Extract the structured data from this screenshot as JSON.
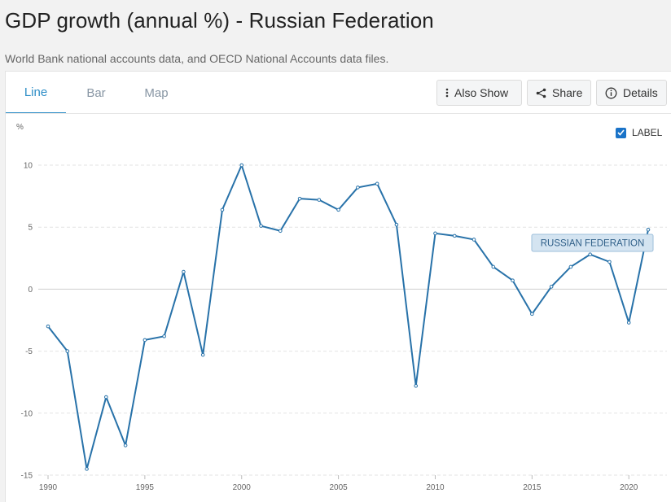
{
  "header": {
    "title": "GDP growth (annual %) - Russian Federation",
    "subtitle": "World Bank national accounts data, and OECD National Accounts data files."
  },
  "tabs": [
    {
      "label": "Line",
      "active": true
    },
    {
      "label": "Bar",
      "active": false
    },
    {
      "label": "Map",
      "active": false
    }
  ],
  "toolbar": {
    "also_show_label": "Also Show",
    "share_label": "Share",
    "details_label": "Details"
  },
  "label_toggle": {
    "label": "LABEL",
    "checked": true
  },
  "colors": {
    "accent": "#2e8ec7",
    "series": "#2872a9",
    "label_box": "#d4e4f1"
  },
  "chart_data": {
    "type": "line",
    "ylabel": "%",
    "xlabel": "",
    "ylim": [
      -15,
      10
    ],
    "xlim": [
      1990,
      2021
    ],
    "yticks": [
      10,
      5,
      0,
      -5,
      -10,
      -15
    ],
    "xticks": [
      1990,
      1995,
      2000,
      2005,
      2010,
      2015,
      2020
    ],
    "grid": true,
    "series": [
      {
        "name": "RUSSIAN FEDERATION",
        "x": [
          1990,
          1991,
          1992,
          1993,
          1994,
          1995,
          1996,
          1997,
          1998,
          1999,
          2000,
          2001,
          2002,
          2003,
          2004,
          2005,
          2006,
          2007,
          2008,
          2009,
          2010,
          2011,
          2012,
          2013,
          2014,
          2015,
          2016,
          2017,
          2018,
          2019,
          2020,
          2021
        ],
        "values": [
          -3.0,
          -5.0,
          -14.5,
          -8.7,
          -12.6,
          -4.1,
          -3.8,
          1.4,
          -5.3,
          6.4,
          10.0,
          5.1,
          4.7,
          7.3,
          7.2,
          6.4,
          8.2,
          8.5,
          5.2,
          -7.8,
          4.5,
          4.3,
          4.0,
          1.8,
          0.7,
          -2.0,
          0.2,
          1.8,
          2.8,
          2.2,
          -2.7,
          4.8
        ]
      }
    ]
  }
}
